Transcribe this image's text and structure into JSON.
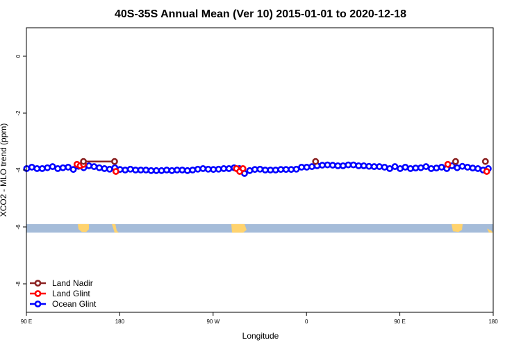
{
  "chart_data": {
    "type": "line",
    "title": "40S-35S Annual Mean (Ver 10)   2015-01-01 to 2020-12-18",
    "xlabel": "Longitude",
    "ylabel": "XCO2 - MLO trend (ppm)",
    "xlim": [
      90,
      450
    ],
    "ylim": [
      -9,
      1
    ],
    "x_ticks": [
      {
        "value": 90,
        "label": "90 E"
      },
      {
        "value": 162,
        "label": "180"
      },
      {
        "value": 234,
        "label": "90 W"
      },
      {
        "value": 306,
        "label": "0"
      },
      {
        "value": 378,
        "label": "90 E"
      },
      {
        "value": 450,
        "label": "180"
      }
    ],
    "y_ticks": [
      {
        "value": 0,
        "label": "0"
      },
      {
        "value": -2,
        "label": "-2"
      },
      {
        "value": -4,
        "label": "-4"
      },
      {
        "value": -6,
        "label": "-6"
      },
      {
        "value": -8,
        "label": "-8"
      }
    ],
    "grid": false,
    "legend_position": "bottom-left",
    "series": [
      {
        "name": "Land Nadir",
        "color": "#8b2323",
        "segments": [
          [
            [
              134.0,
              -3.7
            ],
            [
              158.0,
              -3.7
            ]
          ],
          [
            [
              313.0,
              -3.7
            ]
          ],
          [
            [
              421.0,
              -3.7
            ]
          ],
          [
            [
              444.0,
              -3.7
            ]
          ]
        ]
      },
      {
        "name": "Land Glint",
        "color": "#ff0000",
        "segments": [
          [
            [
              129.0,
              -3.8
            ],
            [
              131.5,
              -3.85
            ],
            [
              134.0,
              -3.8
            ]
          ],
          [
            [
              159.0,
              -4.05
            ]
          ],
          [
            [
              252.0,
              -3.95
            ],
            [
              254.5,
              -4.05
            ],
            [
              257.0,
              -3.95
            ]
          ],
          [
            [
              415.0,
              -3.8
            ]
          ],
          [
            [
              445.0,
              -4.05
            ]
          ]
        ]
      },
      {
        "name": "Ocean Glint",
        "color": "#0000ff",
        "segments": [
          [
            [
              90.2,
              -3.95
            ],
            [
              94.2,
              -3.9
            ],
            [
              98.2,
              -3.95
            ],
            [
              102.2,
              -3.95
            ],
            [
              106.2,
              -3.92
            ],
            [
              110.2,
              -3.88
            ],
            [
              114.2,
              -3.95
            ],
            [
              118.2,
              -3.92
            ],
            [
              122.2,
              -3.9
            ],
            [
              126.2,
              -3.98
            ],
            [
              130.2,
              -3.87
            ],
            [
              134.2,
              -3.92
            ],
            [
              138.2,
              -3.85
            ],
            [
              142.2,
              -3.88
            ],
            [
              146.2,
              -3.92
            ],
            [
              150.2,
              -3.95
            ],
            [
              154.2,
              -3.97
            ],
            [
              158.2,
              -3.92
            ],
            [
              162.2,
              -3.98
            ],
            [
              166.2,
              -4.0
            ],
            [
              170.2,
              -3.97
            ],
            [
              174.2,
              -4.0
            ],
            [
              178.2,
              -4.0
            ],
            [
              182.2,
              -4.0
            ],
            [
              186.2,
              -4.02
            ],
            [
              190.2,
              -4.02
            ],
            [
              194.2,
              -4.02
            ],
            [
              198.2,
              -4.0
            ],
            [
              202.2,
              -4.02
            ],
            [
              206.2,
              -4.0
            ],
            [
              210.2,
              -4.0
            ],
            [
              214.2,
              -4.02
            ],
            [
              218.2,
              -4.0
            ],
            [
              222.2,
              -3.97
            ],
            [
              226.2,
              -3.95
            ],
            [
              230.2,
              -3.97
            ],
            [
              234.2,
              -3.98
            ],
            [
              238.2,
              -3.97
            ],
            [
              242.2,
              -3.95
            ],
            [
              246.2,
              -3.95
            ],
            [
              250.2,
              -3.92
            ],
            [
              254.2,
              -3.95
            ],
            [
              258.2,
              -4.12
            ],
            [
              262.2,
              -4.02
            ],
            [
              266.2,
              -3.98
            ],
            [
              270.2,
              -3.97
            ],
            [
              274.2,
              -4.0
            ],
            [
              278.2,
              -4.0
            ],
            [
              282.2,
              -4.0
            ],
            [
              286.2,
              -3.98
            ],
            [
              290.2,
              -3.98
            ],
            [
              294.2,
              -3.98
            ],
            [
              298.2,
              -3.97
            ],
            [
              302.2,
              -3.9
            ],
            [
              306.2,
              -3.9
            ],
            [
              310.2,
              -3.88
            ],
            [
              314.2,
              -3.85
            ],
            [
              318.2,
              -3.83
            ],
            [
              322.2,
              -3.82
            ],
            [
              326.2,
              -3.83
            ],
            [
              330.2,
              -3.85
            ],
            [
              334.2,
              -3.85
            ],
            [
              338.2,
              -3.82
            ],
            [
              342.2,
              -3.82
            ],
            [
              346.2,
              -3.85
            ],
            [
              350.2,
              -3.85
            ],
            [
              354.2,
              -3.87
            ],
            [
              358.2,
              -3.88
            ],
            [
              362.2,
              -3.88
            ],
            [
              366.2,
              -3.9
            ],
            [
              370.2,
              -3.95
            ],
            [
              374.2,
              -3.88
            ],
            [
              378.2,
              -3.95
            ],
            [
              382.2,
              -3.9
            ],
            [
              386.2,
              -3.95
            ],
            [
              390.2,
              -3.93
            ],
            [
              394.2,
              -3.92
            ],
            [
              398.2,
              -3.88
            ],
            [
              402.2,
              -3.95
            ],
            [
              406.2,
              -3.93
            ],
            [
              410.2,
              -3.9
            ],
            [
              414.2,
              -3.95
            ],
            [
              418.2,
              -3.85
            ],
            [
              422.2,
              -3.92
            ],
            [
              426.2,
              -3.87
            ],
            [
              430.2,
              -3.9
            ],
            [
              434.2,
              -3.93
            ],
            [
              438.2,
              -3.95
            ],
            [
              442.2,
              -4.0
            ],
            [
              446.2,
              -3.95
            ]
          ]
        ]
      }
    ],
    "land_band": {
      "y_range": [
        -6.2,
        -5.9
      ],
      "ocean_color": "#a5bcd9",
      "land_color": "#ffd36e"
    }
  }
}
